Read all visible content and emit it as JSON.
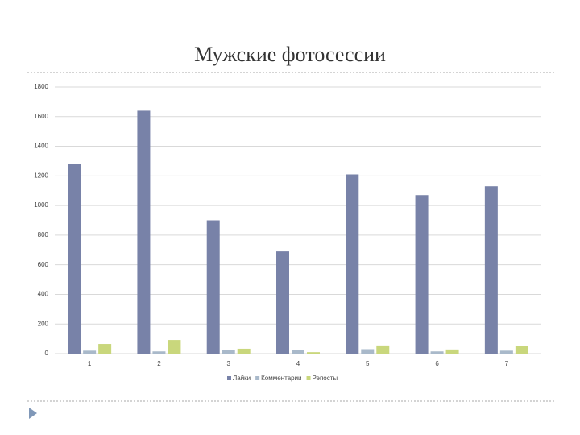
{
  "chart_data": {
    "type": "bar",
    "title": "Мужские фотосессии",
    "categories": [
      "1",
      "2",
      "3",
      "4",
      "5",
      "6",
      "7"
    ],
    "series": [
      {
        "name": "Лайки",
        "color": "#7882a8",
        "values": [
          1280,
          1640,
          900,
          690,
          1210,
          1070,
          1130
        ]
      },
      {
        "name": "Комментарии",
        "color": "#a9b9ca",
        "values": [
          20,
          15,
          25,
          25,
          30,
          15,
          20
        ]
      },
      {
        "name": "Репосты",
        "color": "#c9d77c",
        "values": [
          65,
          92,
          33,
          10,
          55,
          28,
          50
        ]
      }
    ],
    "ylim": [
      0,
      1800
    ],
    "yticks": [
      0,
      200,
      400,
      600,
      800,
      1000,
      1200,
      1400,
      1600,
      1800
    ],
    "grid": true
  }
}
